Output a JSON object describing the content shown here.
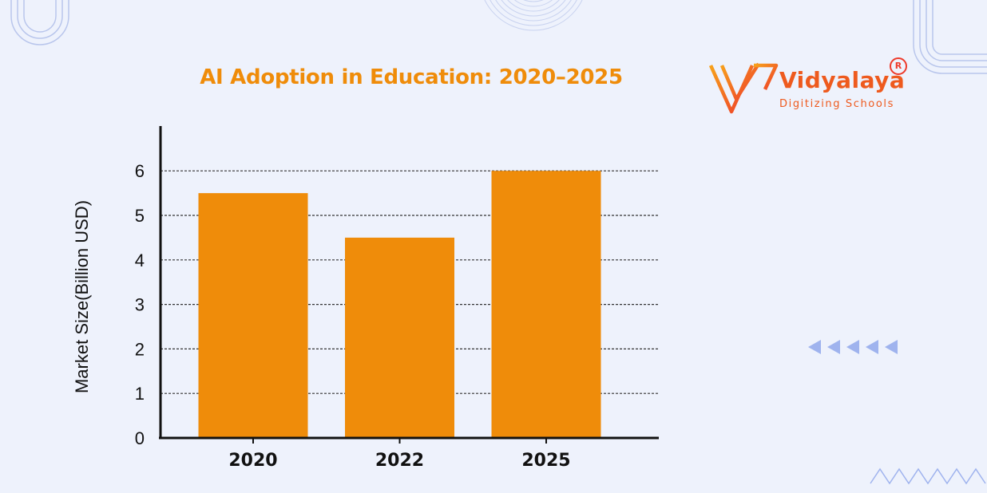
{
  "brand": {
    "name": "Vidyalaya",
    "tagline": "Digitizing Schools",
    "registered_mark": "R",
    "colors": {
      "orange": "#ef8c0a",
      "red": "#ee3a2a"
    }
  },
  "decorations": [
    "rounded-lines-top-left",
    "concentric-circles-top",
    "rounded-corner-lines-top-right",
    "left-arrows",
    "zigzag-line-bottom-right"
  ],
  "chart_data": {
    "type": "bar",
    "title": "AI Adoption in Education: 2020–2025",
    "categories": [
      "2020",
      "2022",
      "2025"
    ],
    "values": [
      5.5,
      4.5,
      6.0
    ],
    "xlabel": "",
    "ylabel": "Market Size(Billion USD)",
    "yticks": [
      0,
      1,
      2,
      3,
      4,
      5,
      6
    ],
    "ylim": [
      0,
      7
    ],
    "grid": true,
    "grid_style": "dashed",
    "bar_color": "#ef8c0a"
  }
}
